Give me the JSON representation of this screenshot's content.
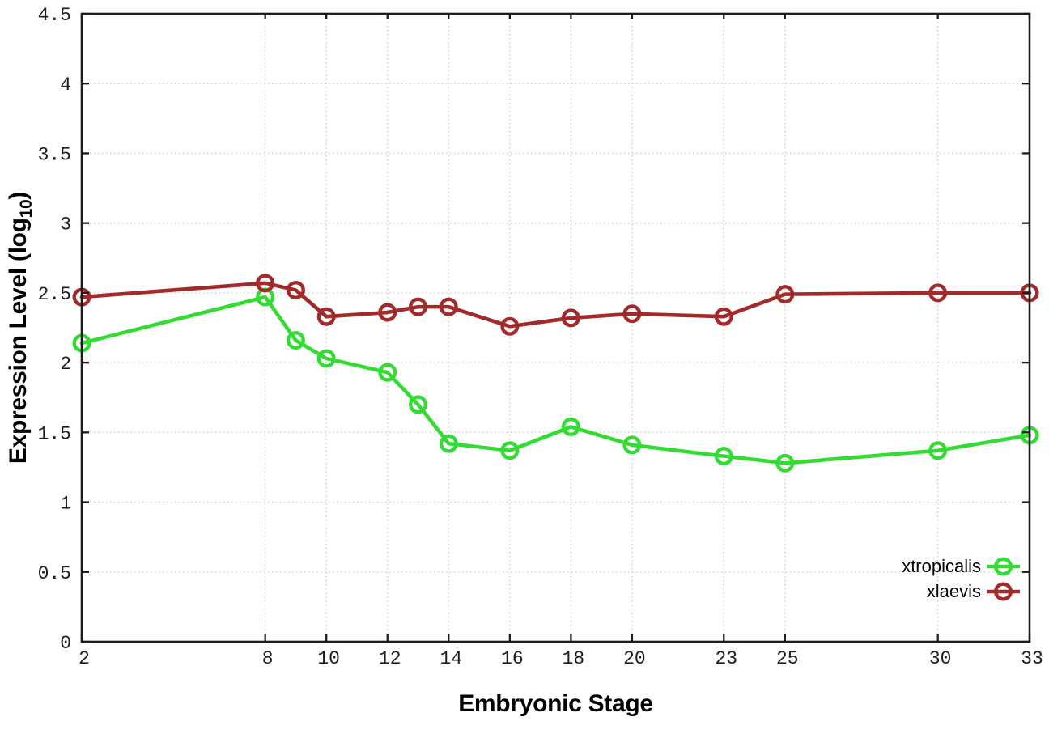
{
  "figure": {
    "background": "#ffffff",
    "axis_color": "#1c1c1c",
    "grid_color": "#c9c9c9",
    "tick_label_color": "#1c1c1c"
  },
  "chart_data": {
    "type": "line",
    "title": "",
    "xlabel": "Embryonic Stage",
    "ylabel": "Expression Level (log_10)",
    "ylabel_parts": {
      "prefix": "Expression Level (log",
      "subscript": "10",
      "suffix": ")"
    },
    "x": [
      2,
      8,
      9,
      10,
      12,
      13,
      14,
      16,
      18,
      20,
      23,
      25,
      30,
      33
    ],
    "series": [
      {
        "name": "xtropicalis",
        "color": "#33DC33",
        "values": [
          2.14,
          2.47,
          2.16,
          2.03,
          1.93,
          1.7,
          1.42,
          1.37,
          1.54,
          1.41,
          1.33,
          1.28,
          1.37,
          1.48
        ]
      },
      {
        "name": "xlaevis",
        "color": "#A32A2A",
        "values": [
          2.47,
          2.57,
          2.52,
          2.33,
          2.36,
          2.4,
          2.4,
          2.26,
          2.32,
          2.35,
          2.33,
          2.49,
          2.5,
          2.5
        ]
      }
    ],
    "xlim": [
      2,
      33
    ],
    "ylim": [
      0,
      4.5
    ],
    "xticks": {
      "values": [
        2,
        8,
        10,
        12,
        14,
        16,
        18,
        20,
        23,
        25,
        30,
        33
      ],
      "labels": [
        "2",
        "8",
        "10",
        "12",
        "14",
        "16",
        "18",
        "20",
        "23",
        "25",
        "30",
        "33"
      ]
    },
    "yticks": {
      "values": [
        0,
        0.5,
        1,
        1.5,
        2,
        2.5,
        3,
        3.5,
        4,
        4.5
      ],
      "labels": [
        "0",
        "0.5",
        "1",
        "1.5",
        "2",
        "2.5",
        "3",
        "3.5",
        "4",
        "4.5"
      ]
    },
    "grid": true,
    "legend": {
      "position": "right-bottom-inside",
      "entries": [
        "xtropicalis",
        "xlaevis"
      ]
    }
  }
}
